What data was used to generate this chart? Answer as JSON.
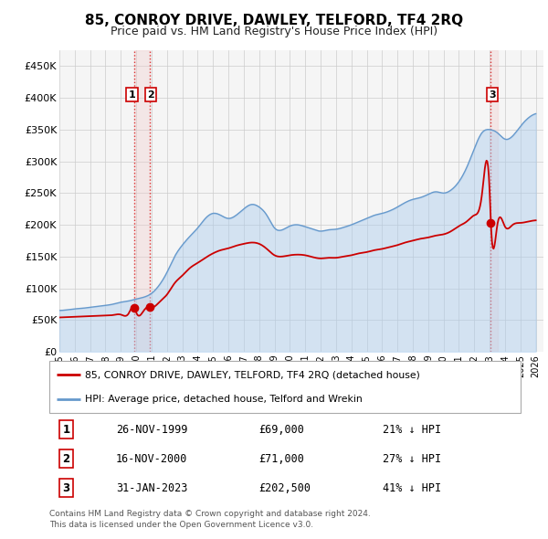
{
  "title": "85, CONROY DRIVE, DAWLEY, TELFORD, TF4 2RQ",
  "subtitle": "Price paid vs. HM Land Registry's House Price Index (HPI)",
  "title_fontsize": 11,
  "subtitle_fontsize": 9,
  "xlim": [
    1995.0,
    2026.5
  ],
  "ylim": [
    0,
    475000
  ],
  "yticks": [
    0,
    50000,
    100000,
    150000,
    200000,
    250000,
    300000,
    350000,
    400000,
    450000
  ],
  "ytick_labels": [
    "£0",
    "£50K",
    "£100K",
    "£150K",
    "£200K",
    "£250K",
    "£300K",
    "£350K",
    "£400K",
    "£450K"
  ],
  "sale_color": "#cc0000",
  "hpi_fill_color": "#aaccee",
  "hpi_line_color": "#6699cc",
  "sale_dates": [
    1999.9,
    2000.88,
    2023.08
  ],
  "sale_prices": [
    69000,
    71000,
    202500
  ],
  "vline_color": "#dd3333",
  "shade_color": "#f0cccc",
  "legend_labels": [
    "85, CONROY DRIVE, DAWLEY, TELFORD, TF4 2RQ (detached house)",
    "HPI: Average price, detached house, Telford and Wrekin"
  ],
  "table_rows": [
    [
      "1",
      "26-NOV-1999",
      "£69,000",
      "21% ↓ HPI"
    ],
    [
      "2",
      "16-NOV-2000",
      "£71,000",
      "27% ↓ HPI"
    ],
    [
      "3",
      "31-JAN-2023",
      "£202,500",
      "41% ↓ HPI"
    ]
  ],
  "footer_text": "Contains HM Land Registry data © Crown copyright and database right 2024.\nThis data is licensed under the Open Government Licence v3.0.",
  "background_color": "#f5f5f5",
  "grid_color": "#cccccc",
  "hpi_curve": [
    [
      1995.0,
      65000
    ],
    [
      1995.5,
      66000
    ],
    [
      1996.0,
      67500
    ],
    [
      1996.5,
      68500
    ],
    [
      1997.0,
      70000
    ],
    [
      1997.5,
      71500
    ],
    [
      1998.0,
      73000
    ],
    [
      1998.5,
      75000
    ],
    [
      1999.0,
      78000
    ],
    [
      1999.5,
      80000
    ],
    [
      2000.0,
      83000
    ],
    [
      2000.5,
      86000
    ],
    [
      2001.0,
      92000
    ],
    [
      2001.5,
      105000
    ],
    [
      2002.0,
      125000
    ],
    [
      2002.5,
      150000
    ],
    [
      2003.0,
      168000
    ],
    [
      2003.5,
      182000
    ],
    [
      2004.0,
      195000
    ],
    [
      2004.5,
      210000
    ],
    [
      2005.0,
      218000
    ],
    [
      2005.5,
      215000
    ],
    [
      2006.0,
      210000
    ],
    [
      2006.5,
      215000
    ],
    [
      2007.0,
      225000
    ],
    [
      2007.5,
      232000
    ],
    [
      2008.0,
      228000
    ],
    [
      2008.5,
      215000
    ],
    [
      2009.0,
      195000
    ],
    [
      2009.5,
      192000
    ],
    [
      2010.0,
      198000
    ],
    [
      2010.5,
      200000
    ],
    [
      2011.0,
      197000
    ],
    [
      2011.5,
      193000
    ],
    [
      2012.0,
      190000
    ],
    [
      2012.5,
      192000
    ],
    [
      2013.0,
      193000
    ],
    [
      2013.5,
      196000
    ],
    [
      2014.0,
      200000
    ],
    [
      2014.5,
      205000
    ],
    [
      2015.0,
      210000
    ],
    [
      2015.5,
      215000
    ],
    [
      2016.0,
      218000
    ],
    [
      2016.5,
      222000
    ],
    [
      2017.0,
      228000
    ],
    [
      2017.5,
      235000
    ],
    [
      2018.0,
      240000
    ],
    [
      2018.5,
      243000
    ],
    [
      2019.0,
      248000
    ],
    [
      2019.5,
      252000
    ],
    [
      2020.0,
      250000
    ],
    [
      2020.5,
      255000
    ],
    [
      2021.0,
      268000
    ],
    [
      2021.5,
      290000
    ],
    [
      2022.0,
      320000
    ],
    [
      2022.5,
      345000
    ],
    [
      2023.0,
      350000
    ],
    [
      2023.5,
      345000
    ],
    [
      2024.0,
      335000
    ],
    [
      2024.5,
      340000
    ],
    [
      2025.0,
      355000
    ],
    [
      2025.5,
      368000
    ],
    [
      2026.0,
      375000
    ]
  ],
  "pp_curve": [
    [
      1995.0,
      54000
    ],
    [
      1995.5,
      54500
    ],
    [
      1996.0,
      55000
    ],
    [
      1996.5,
      55500
    ],
    [
      1997.0,
      56000
    ],
    [
      1997.5,
      56500
    ],
    [
      1998.0,
      57000
    ],
    [
      1998.5,
      57800
    ],
    [
      1999.0,
      58500
    ],
    [
      1999.5,
      60000
    ],
    [
      1999.9,
      69000
    ],
    [
      2000.0,
      62000
    ],
    [
      2000.5,
      65000
    ],
    [
      2000.88,
      71000
    ],
    [
      2001.0,
      70000
    ],
    [
      2001.5,
      78000
    ],
    [
      2002.0,
      90000
    ],
    [
      2002.5,
      108000
    ],
    [
      2003.0,
      120000
    ],
    [
      2003.5,
      132000
    ],
    [
      2004.0,
      140000
    ],
    [
      2004.5,
      148000
    ],
    [
      2005.0,
      155000
    ],
    [
      2005.5,
      160000
    ],
    [
      2006.0,
      163000
    ],
    [
      2006.5,
      167000
    ],
    [
      2007.0,
      170000
    ],
    [
      2007.5,
      172000
    ],
    [
      2008.0,
      170000
    ],
    [
      2008.5,
      162000
    ],
    [
      2009.0,
      152000
    ],
    [
      2009.5,
      150000
    ],
    [
      2010.0,
      152000
    ],
    [
      2010.5,
      153000
    ],
    [
      2011.0,
      152000
    ],
    [
      2011.5,
      149000
    ],
    [
      2012.0,
      147000
    ],
    [
      2012.5,
      148000
    ],
    [
      2013.0,
      148000
    ],
    [
      2013.5,
      150000
    ],
    [
      2014.0,
      152000
    ],
    [
      2014.5,
      155000
    ],
    [
      2015.0,
      157000
    ],
    [
      2015.5,
      160000
    ],
    [
      2016.0,
      162000
    ],
    [
      2016.5,
      165000
    ],
    [
      2017.0,
      168000
    ],
    [
      2017.5,
      172000
    ],
    [
      2018.0,
      175000
    ],
    [
      2018.5,
      178000
    ],
    [
      2019.0,
      180000
    ],
    [
      2019.5,
      183000
    ],
    [
      2020.0,
      185000
    ],
    [
      2020.5,
      190000
    ],
    [
      2021.0,
      198000
    ],
    [
      2021.5,
      205000
    ],
    [
      2022.0,
      215000
    ],
    [
      2022.5,
      248000
    ],
    [
      2023.0,
      252000
    ],
    [
      2023.08,
      202500
    ],
    [
      2023.5,
      200000
    ],
    [
      2024.0,
      197000
    ],
    [
      2024.5,
      200000
    ],
    [
      2025.0,
      203000
    ],
    [
      2025.5,
      205000
    ],
    [
      2026.0,
      207000
    ]
  ]
}
